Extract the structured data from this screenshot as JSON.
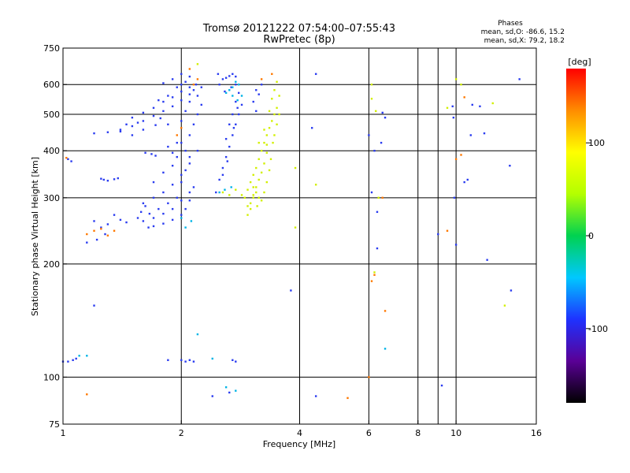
{
  "chart_data": {
    "type": "scatter",
    "title": "Tromsø 20121222 07:54:00–07:55:43",
    "subtitle": "RwPretec (8p)",
    "xlabel": "Frequency [MHz]",
    "ylabel": "Stationary phase Virtual Height [km]",
    "x_scale": "log",
    "y_scale": "log",
    "xlim": [
      1,
      16
    ],
    "ylim": [
      75,
      750
    ],
    "x_ticks": [
      1,
      2,
      4,
      6,
      8,
      10,
      16
    ],
    "x_minor_ticks": [
      9
    ],
    "y_ticks": [
      75,
      100,
      200,
      300,
      400,
      500,
      600,
      750
    ],
    "grid": true,
    "stats_heading": "Phases",
    "stats": [
      "mean, sd,O: -86.6, 15.2",
      "mean, sd,X:  79.2, 18.2"
    ],
    "colorbar": {
      "label": "[deg]",
      "min": -180,
      "max": 180,
      "ticks": [
        100,
        0,
        -100
      ],
      "colors": [
        "#000000",
        "#5a0096",
        "#1e32ff",
        "#00c8ff",
        "#00d250",
        "#b4ff00",
        "#ffff00",
        "#ff8c00",
        "#ff0000"
      ]
    },
    "series": [
      {
        "points": [
          [
            1.03,
            380
          ],
          [
            1.05,
            375
          ],
          [
            1.2,
            260
          ],
          [
            1.25,
            250
          ],
          [
            1.3,
            255
          ],
          [
            1.35,
            270
          ],
          [
            1.28,
            240
          ],
          [
            1.22,
            232
          ],
          [
            1.15,
            228
          ],
          [
            1.4,
            262
          ],
          [
            1.45,
            258
          ],
          [
            1.27,
            335
          ],
          [
            1.3,
            333
          ],
          [
            1.35,
            336
          ],
          [
            1.38,
            338
          ],
          [
            1.25,
            337
          ],
          [
            1.2,
            445
          ],
          [
            1.3,
            448
          ],
          [
            1.4,
            455
          ],
          [
            1.5,
            465
          ],
          [
            1.6,
            480
          ],
          [
            1.7,
            495
          ],
          [
            1.8,
            510
          ],
          [
            1.9,
            525
          ],
          [
            2.0,
            545
          ],
          [
            2.1,
            565
          ],
          [
            1.6,
            505
          ],
          [
            1.7,
            520
          ],
          [
            1.8,
            540
          ],
          [
            1.9,
            555
          ],
          [
            2.0,
            575
          ],
          [
            1.5,
            490
          ],
          [
            1.75,
            545
          ],
          [
            1.85,
            560
          ],
          [
            1.95,
            590
          ],
          [
            2.05,
            610
          ],
          [
            1.9,
            620
          ],
          [
            2.0,
            640
          ],
          [
            2.1,
            630
          ],
          [
            1.8,
            605
          ],
          [
            1.65,
            250
          ],
          [
            1.7,
            252
          ],
          [
            1.8,
            256
          ],
          [
            1.9,
            262
          ],
          [
            2.0,
            270
          ],
          [
            2.05,
            280
          ],
          [
            2.1,
            295
          ],
          [
            2.15,
            320
          ],
          [
            1.6,
            260
          ],
          [
            1.7,
            265
          ],
          [
            1.8,
            272
          ],
          [
            1.9,
            280
          ],
          [
            2.0,
            295
          ],
          [
            2.1,
            310
          ],
          [
            1.6,
            290
          ],
          [
            1.7,
            300
          ],
          [
            1.8,
            310
          ],
          [
            1.9,
            325
          ],
          [
            2.0,
            345
          ],
          [
            2.1,
            370
          ],
          [
            2.2,
            400
          ],
          [
            1.7,
            330
          ],
          [
            1.8,
            350
          ],
          [
            1.9,
            365
          ],
          [
            1.95,
            300
          ],
          [
            2.0,
            330
          ],
          [
            2.05,
            355
          ],
          [
            2.1,
            385
          ],
          [
            1.55,
            265
          ],
          [
            1.58,
            275
          ],
          [
            1.62,
            285
          ],
          [
            1.66,
            272
          ],
          [
            1.75,
            280
          ],
          [
            1.85,
            290
          ],
          [
            2.0,
            420
          ],
          [
            2.1,
            440
          ],
          [
            2.15,
            470
          ],
          [
            2.2,
            500
          ],
          [
            2.25,
            530
          ],
          [
            2.0,
            480
          ],
          [
            2.05,
            510
          ],
          [
            2.1,
            540
          ],
          [
            2.15,
            580
          ],
          [
            1.62,
            395
          ],
          [
            1.68,
            392
          ],
          [
            1.72,
            388
          ],
          [
            1.95,
            385
          ],
          [
            2.05,
            400
          ],
          [
            2.1,
            590
          ],
          [
            2.18,
            600
          ],
          [
            2.0,
            600
          ],
          [
            1.85,
            410
          ],
          [
            1.9,
            395
          ],
          [
            1.95,
            420
          ],
          [
            2.45,
            310
          ],
          [
            2.5,
            335
          ],
          [
            2.55,
            360
          ],
          [
            2.6,
            385
          ],
          [
            2.65,
            410
          ],
          [
            2.7,
            440
          ],
          [
            2.75,
            470
          ],
          [
            2.8,
            500
          ],
          [
            2.85,
            530
          ],
          [
            2.6,
            430
          ],
          [
            2.65,
            470
          ],
          [
            2.7,
            500
          ],
          [
            2.75,
            540
          ],
          [
            2.8,
            570
          ],
          [
            2.55,
            620
          ],
          [
            2.6,
            625
          ],
          [
            2.65,
            632
          ],
          [
            2.7,
            640
          ],
          [
            2.75,
            630
          ],
          [
            2.5,
            600
          ],
          [
            2.58,
            575
          ],
          [
            2.68,
            590
          ],
          [
            2.75,
            600
          ],
          [
            2.48,
            640
          ],
          [
            2.55,
            345
          ],
          [
            2.62,
            375
          ],
          [
            2.72,
            460
          ],
          [
            2.78,
            520
          ],
          [
            3.1,
            580
          ],
          [
            3.15,
            565
          ],
          [
            3.2,
            600
          ],
          [
            3.05,
            540
          ],
          [
            3.1,
            510
          ],
          [
            1.0,
            110
          ],
          [
            1.03,
            110
          ],
          [
            1.06,
            111
          ],
          [
            1.08,
            112
          ],
          [
            2.0,
            111
          ],
          [
            2.05,
            110
          ],
          [
            2.1,
            111
          ],
          [
            2.15,
            110
          ],
          [
            2.7,
            111
          ],
          [
            2.75,
            110
          ],
          [
            1.85,
            111
          ],
          [
            1.2,
            155
          ],
          [
            3.8,
            170
          ],
          [
            2.65,
            91
          ],
          [
            6.3,
            220
          ],
          [
            10.0,
            225
          ],
          [
            10.5,
            330
          ],
          [
            9.9,
            300
          ],
          [
            13.7,
            365
          ],
          [
            14.5,
            620
          ],
          [
            11.0,
            530
          ],
          [
            10.7,
            335
          ],
          [
            6.0,
            440
          ],
          [
            6.2,
            400
          ],
          [
            6.45,
            420
          ],
          [
            6.6,
            490
          ],
          [
            6.5,
            505
          ],
          [
            4.4,
            640
          ],
          [
            4.3,
            460
          ],
          [
            6.1,
            310
          ],
          [
            6.3,
            275
          ],
          [
            9.8,
            525
          ],
          [
            11.8,
            445
          ],
          [
            11.5,
            525
          ],
          [
            10.9,
            440
          ],
          [
            9.2,
            95
          ],
          [
            9.85,
            490
          ],
          [
            9.0,
            240
          ],
          [
            12.0,
            205
          ],
          [
            13.8,
            170
          ],
          [
            2.4,
            89
          ],
          [
            4.4,
            89
          ],
          [
            1.5,
            440
          ],
          [
            1.4,
            450
          ],
          [
            1.85,
            470
          ],
          [
            1.77,
            488
          ],
          [
            1.55,
            475
          ],
          [
            2.2,
            560
          ],
          [
            2.25,
            590
          ],
          [
            1.45,
            470
          ],
          [
            1.72,
            468
          ],
          [
            1.6,
            455
          ]
        ]
      },
      {
        "points": [
          [
            2.95,
            315
          ],
          [
            3.0,
            330
          ],
          [
            3.05,
            345
          ],
          [
            3.1,
            360
          ],
          [
            3.15,
            380
          ],
          [
            3.2,
            400
          ],
          [
            3.25,
            420
          ],
          [
            3.3,
            440
          ],
          [
            3.35,
            460
          ],
          [
            3.4,
            480
          ],
          [
            3.45,
            500
          ],
          [
            3.0,
            290
          ],
          [
            3.05,
            305
          ],
          [
            3.1,
            320
          ],
          [
            3.15,
            335
          ],
          [
            3.2,
            350
          ],
          [
            3.25,
            370
          ],
          [
            3.3,
            395
          ],
          [
            2.9,
            300
          ],
          [
            2.95,
            285
          ],
          [
            3.0,
            280
          ],
          [
            3.05,
            300
          ],
          [
            3.1,
            310
          ],
          [
            3.15,
            300
          ],
          [
            3.5,
            520
          ],
          [
            3.55,
            560
          ],
          [
            3.5,
            610
          ],
          [
            3.45,
            580
          ],
          [
            3.4,
            550
          ],
          [
            2.55,
            310
          ],
          [
            2.65,
            305
          ],
          [
            2.75,
            315
          ],
          [
            2.85,
            305
          ],
          [
            3.12,
            285
          ],
          [
            3.2,
            295
          ],
          [
            3.25,
            310
          ],
          [
            3.3,
            330
          ],
          [
            3.35,
            355
          ],
          [
            3.38,
            380
          ],
          [
            3.42,
            420
          ],
          [
            3.45,
            440
          ],
          [
            3.5,
            470
          ],
          [
            3.55,
            500
          ],
          [
            2.95,
            270
          ],
          [
            3.05,
            320
          ],
          [
            3.15,
            420
          ],
          [
            3.25,
            455
          ],
          [
            3.35,
            510
          ],
          [
            3.3,
            415
          ],
          [
            6.1,
            550
          ],
          [
            6.25,
            510
          ],
          [
            9.5,
            520
          ],
          [
            12.4,
            535
          ],
          [
            13.3,
            155
          ],
          [
            10.0,
            620
          ],
          [
            10.3,
            600
          ],
          [
            4.4,
            325
          ],
          [
            3.9,
            360
          ],
          [
            3.9,
            250
          ],
          [
            6.2,
            190
          ],
          [
            6.35,
            300
          ],
          [
            6.1,
            600
          ],
          [
            2.2,
            680
          ]
        ]
      },
      {
        "points": [
          [
            2.6,
            570
          ],
          [
            2.65,
            580
          ],
          [
            2.7,
            590
          ],
          [
            2.75,
            610
          ],
          [
            2.8,
            600
          ],
          [
            2.7,
            560
          ],
          [
            2.78,
            545
          ],
          [
            2.85,
            560
          ],
          [
            2.5,
            310
          ],
          [
            2.58,
            315
          ],
          [
            2.68,
            320
          ],
          [
            2.2,
            130
          ],
          [
            2.6,
            94
          ],
          [
            2.75,
            92
          ],
          [
            6.6,
            119
          ],
          [
            2.4,
            112
          ],
          [
            1.15,
            114
          ],
          [
            1.1,
            114
          ],
          [
            2.0,
            265
          ],
          [
            2.05,
            250
          ],
          [
            2.12,
            260
          ]
        ]
      },
      {
        "points": [
          [
            1.2,
            245
          ],
          [
            1.25,
            248
          ],
          [
            1.35,
            245
          ],
          [
            1.15,
            240
          ],
          [
            1.3,
            238
          ],
          [
            2.1,
            660
          ],
          [
            2.15,
            600
          ],
          [
            2.2,
            620
          ],
          [
            2.0,
            460
          ],
          [
            1.95,
            440
          ],
          [
            6.1,
            180
          ],
          [
            6.2,
            187
          ],
          [
            10.5,
            555
          ],
          [
            10.3,
            390
          ],
          [
            6.5,
            300
          ],
          [
            3.2,
            620
          ],
          [
            5.3,
            88
          ],
          [
            1.15,
            90
          ],
          [
            6.6,
            150
          ],
          [
            9.5,
            245
          ],
          [
            6.0,
            100
          ],
          [
            3.4,
            640
          ],
          [
            10.0,
            380
          ],
          [
            1.02,
            383
          ]
        ]
      }
    ]
  }
}
